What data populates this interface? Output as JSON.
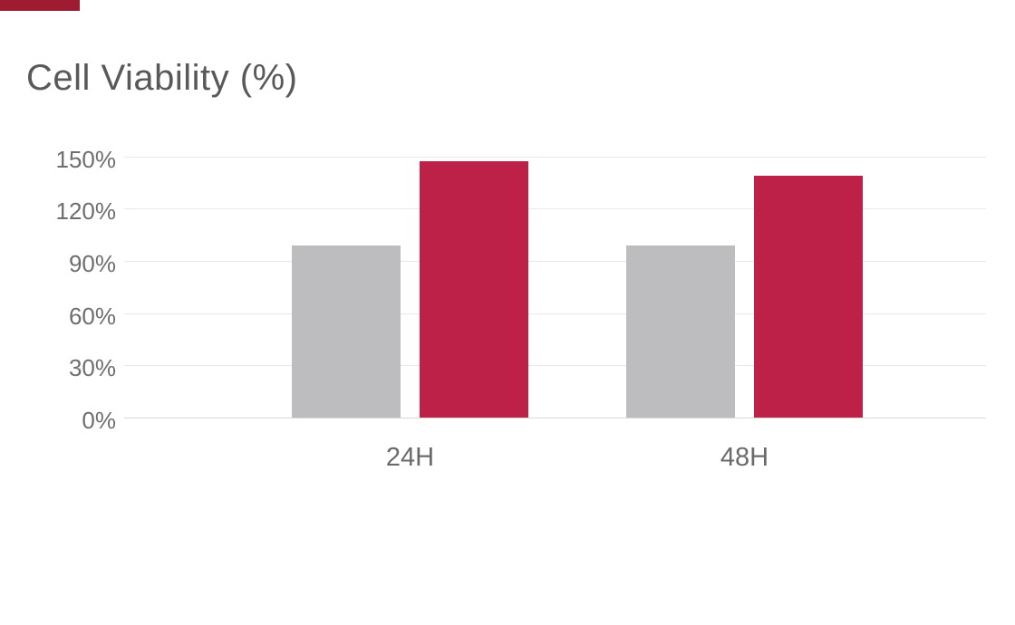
{
  "page": {
    "background": "#ffffff"
  },
  "accent_bar": {
    "color": "#9E1B32"
  },
  "chart_data": {
    "type": "bar",
    "title": "Cell Viability (%)",
    "categories": [
      "24H",
      "48H"
    ],
    "series": [
      {
        "name": "Gray",
        "color": "#BDBDBF",
        "values": [
          99,
          99
        ]
      },
      {
        "name": "Red",
        "color": "#BE2148",
        "values": [
          147,
          139
        ]
      }
    ],
    "xlabel": "",
    "ylabel": "",
    "ylim": [
      0,
      150
    ],
    "yticks": [
      0,
      30,
      60,
      90,
      120,
      150
    ],
    "ytick_labels": [
      "0%",
      "30%",
      "60%",
      "90%",
      "120%",
      "150%"
    ],
    "grid": true,
    "legend": "none",
    "colors": {
      "title_text": "#595959",
      "y_tick_text": "#6E6E6E",
      "x_tick_text": "#6A6A6A",
      "gridline": "#E8E8E8",
      "axis_line": "#D9D9D9"
    }
  }
}
